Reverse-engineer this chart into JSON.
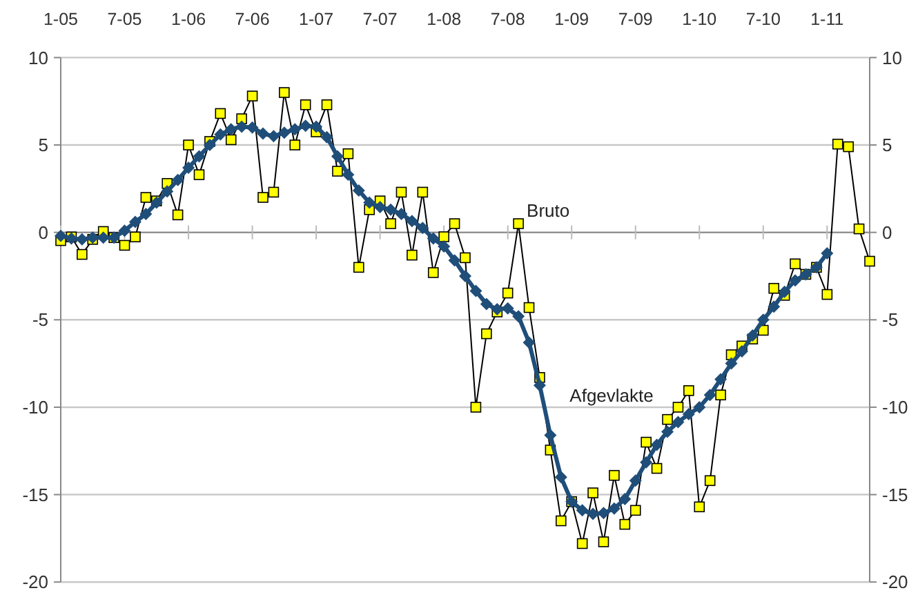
{
  "chart_data": {
    "type": "line",
    "categories": [
      "1-05",
      null,
      null,
      null,
      null,
      null,
      "7-05",
      null,
      null,
      null,
      null,
      null,
      "1-06",
      null,
      null,
      null,
      null,
      null,
      "7-06",
      null,
      null,
      null,
      null,
      null,
      "1-07",
      null,
      null,
      null,
      null,
      null,
      "7-07",
      null,
      null,
      null,
      null,
      null,
      "1-08",
      null,
      null,
      null,
      null,
      null,
      "7-08",
      null,
      null,
      null,
      null,
      null,
      "1-09",
      null,
      null,
      null,
      null,
      null,
      "7-09",
      null,
      null,
      null,
      null,
      null,
      "1-10",
      null,
      null,
      null,
      null,
      null,
      "7-10",
      null,
      null,
      null,
      null,
      null,
      "1-11",
      null,
      null,
      null,
      null
    ],
    "series": [
      {
        "name": "Bruto",
        "color": "#ffff00",
        "marker": "square",
        "values": [
          -0.47,
          -0.26,
          -1.26,
          -0.4,
          0.05,
          -0.3,
          -0.74,
          -0.26,
          2.0,
          1.8,
          2.8,
          1.0,
          5.0,
          3.3,
          5.2,
          6.8,
          5.3,
          6.5,
          7.8,
          2.0,
          2.3,
          8.0,
          5.0,
          7.3,
          5.75,
          7.3,
          3.5,
          4.5,
          -2.0,
          1.3,
          1.8,
          0.5,
          2.3,
          -1.3,
          2.3,
          -2.3,
          -0.25,
          0.5,
          -1.45,
          -10.0,
          -5.8,
          -4.55,
          -3.47,
          0.5,
          -4.3,
          -8.3,
          -12.45,
          -16.5,
          -15.4,
          -17.8,
          -14.9,
          -17.7,
          -13.9,
          -16.7,
          -15.9,
          -12.0,
          -13.5,
          -10.7,
          -10.0,
          -9.05,
          -15.7,
          -14.2,
          -9.3,
          -7.0,
          -6.5,
          -6.1,
          -5.6,
          -3.2,
          -3.6,
          -1.8,
          -2.4,
          -2.0,
          -3.55,
          5.05,
          4.9,
          0.2,
          -1.65
        ]
      },
      {
        "name": "Afgevlakte",
        "color": "#1f4e79",
        "marker": "diamond",
        "values": [
          -0.2,
          -0.35,
          -0.4,
          -0.3,
          -0.3,
          -0.3,
          0.1,
          0.6,
          1.05,
          1.7,
          2.35,
          3.0,
          3.7,
          4.35,
          5.0,
          5.6,
          5.9,
          6.05,
          6.0,
          5.65,
          5.5,
          5.7,
          5.9,
          6.1,
          6.05,
          5.45,
          4.35,
          3.3,
          2.4,
          1.7,
          1.45,
          1.3,
          1.05,
          0.65,
          0.25,
          -0.35,
          -0.8,
          -1.6,
          -2.5,
          -3.35,
          -4.1,
          -4.4,
          -4.35,
          -4.8,
          -6.3,
          -8.75,
          -11.6,
          -14.0,
          -15.4,
          -15.9,
          -16.1,
          -16.05,
          -15.8,
          -15.25,
          -14.2,
          -13.15,
          -12.15,
          -11.4,
          -10.85,
          -10.4,
          -10.0,
          -9.3,
          -8.4,
          -7.5,
          -6.8,
          -5.9,
          -5.0,
          -4.25,
          -3.4,
          -2.75,
          -2.4,
          -2.0,
          -1.2,
          null,
          null,
          null,
          null
        ]
      }
    ],
    "ylim": [
      -20,
      10
    ],
    "yticks": [
      -20,
      -15,
      -10,
      -5,
      0,
      5,
      10
    ],
    "y2lim": [
      -20,
      10
    ],
    "y2ticks": [
      -20,
      -15,
      -10,
      -5,
      0,
      5,
      10
    ],
    "grid": "y"
  }
}
